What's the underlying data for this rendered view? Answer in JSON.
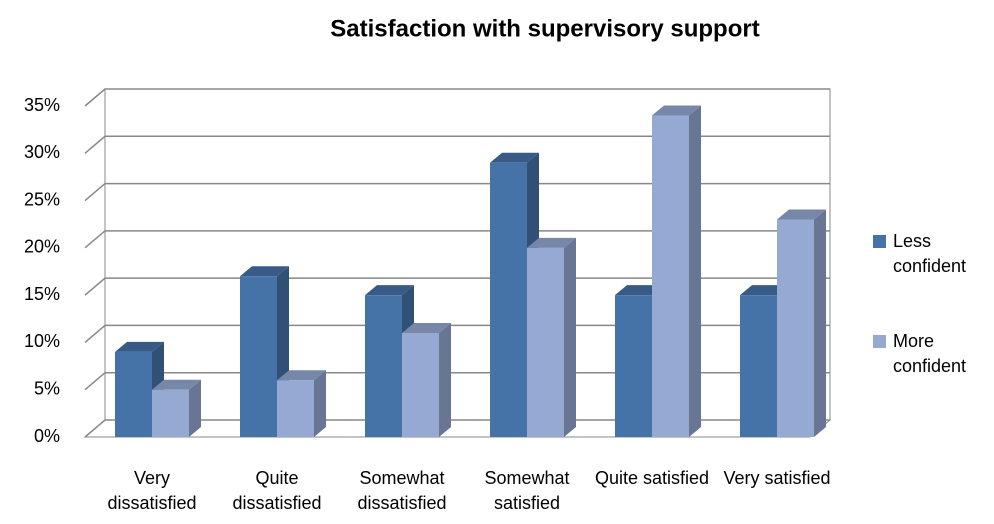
{
  "chart_data": {
    "type": "bar3d",
    "title": "Satisfaction with supervisory support",
    "categories": [
      "Very dissatisfied",
      "Quite dissatisfied",
      "Somewhat dissatisfied",
      "Somewhat satisfied",
      "Quite satisfied",
      "Very satisfied"
    ],
    "series": [
      {
        "name": "Less confident",
        "color": "#4572a7",
        "values": [
          9,
          17,
          15,
          29,
          15,
          15
        ]
      },
      {
        "name": "More confident",
        "color": "#95a9d3",
        "values": [
          5,
          6,
          11,
          20,
          34,
          23
        ]
      }
    ],
    "ylim": [
      0,
      35
    ],
    "yticks": [
      {
        "value": 0,
        "label": "0%"
      },
      {
        "value": 5,
        "label": "5%"
      },
      {
        "value": 10,
        "label": "10%"
      },
      {
        "value": 15,
        "label": "15%"
      },
      {
        "value": 20,
        "label": "20%"
      },
      {
        "value": 25,
        "label": "25%"
      },
      {
        "value": 30,
        "label": "30%"
      },
      {
        "value": 35,
        "label": "35%"
      }
    ],
    "grid": true,
    "legend": "right"
  }
}
